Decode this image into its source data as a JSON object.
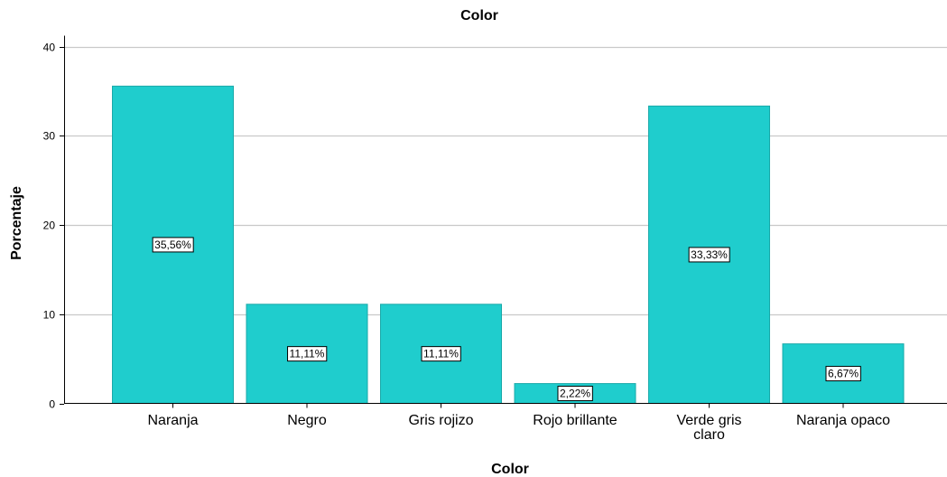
{
  "chart_data": {
    "type": "bar",
    "title": "Color",
    "xlabel": "Color",
    "ylabel": "Porcentaje",
    "categories": [
      "Naranja",
      "Negro",
      "Gris rojizo",
      "Rojo brillante",
      "Verde gris claro",
      "Naranja opaco"
    ],
    "category_lines": [
      [
        "Naranja"
      ],
      [
        "Negro"
      ],
      [
        "Gris rojizo"
      ],
      [
        "Rojo brillante"
      ],
      [
        "Verde gris",
        "claro"
      ],
      [
        "Naranja opaco"
      ]
    ],
    "values": [
      35.56,
      11.11,
      11.11,
      2.22,
      33.33,
      6.67
    ],
    "data_labels": [
      "35,56%",
      "11,11%",
      "11,11%",
      "2,22%",
      "33,33%",
      "6,67%"
    ],
    "y_ticks": [
      0,
      10,
      20,
      30,
      40
    ],
    "y_tick_labels": [
      "0",
      "10",
      "20",
      "30",
      "40"
    ],
    "ylim": [
      0,
      40
    ],
    "grid": true,
    "legend": "none",
    "colors": {
      "bar": "#1fcdcd",
      "bar_stroke": "#1aa9a9",
      "grid": "#c9c9c9",
      "axis": "#000000"
    }
  }
}
